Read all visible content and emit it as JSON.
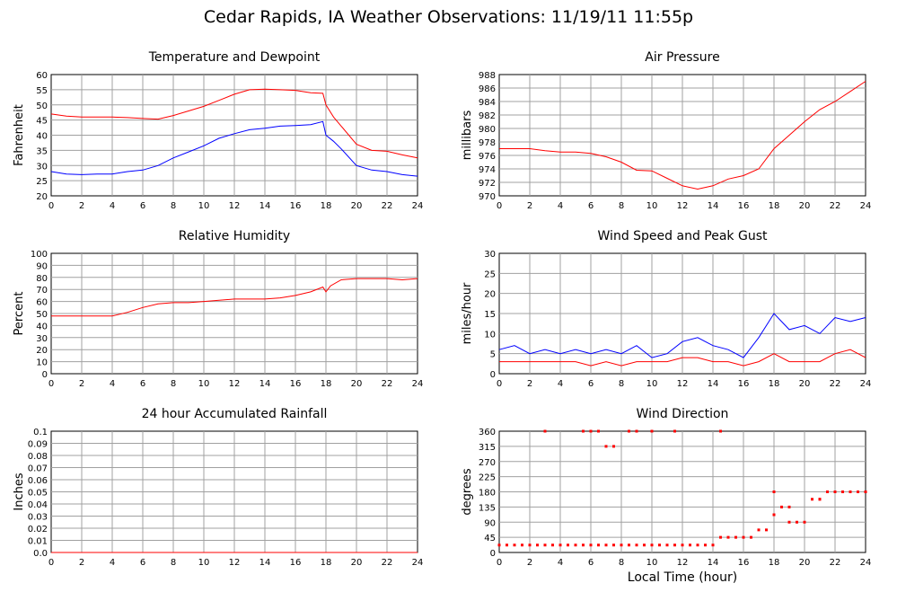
{
  "page": {
    "title": "Cedar Rapids, IA Weather Observations: 11/19/11 11:55p",
    "x_axis_title": "Local Time (hour)"
  },
  "colors": {
    "red_series": "#ff0000",
    "blue_series": "#0000ff",
    "grid": "#a0a0a0"
  },
  "chart_data": [
    {
      "type": "line",
      "title": "Temperature and Dewpoint",
      "ylabel": "Fahrenheit",
      "xlabel": "",
      "xlim": [
        0,
        24
      ],
      "xticks": [
        0,
        2,
        4,
        6,
        8,
        10,
        12,
        14,
        16,
        18,
        20,
        22,
        24
      ],
      "ylim": [
        20,
        60
      ],
      "yticks": [
        20,
        25,
        30,
        35,
        40,
        45,
        50,
        55,
        60
      ],
      "grid": true,
      "series": [
        {
          "color": "#ff0000",
          "x": [
            0,
            1,
            2,
            3,
            4,
            5,
            6,
            7,
            8,
            9,
            10,
            11,
            12,
            13,
            14,
            15,
            16,
            17,
            17.8,
            18,
            18.5,
            19,
            20,
            21,
            22,
            23,
            24
          ],
          "values": [
            47,
            46.3,
            46,
            46,
            46,
            45.8,
            45.5,
            45.3,
            46.5,
            48,
            49.5,
            51.5,
            53.5,
            55,
            55.2,
            55,
            54.8,
            54,
            53.8,
            50,
            46,
            43,
            37,
            35,
            34.7,
            33.5,
            32.5
          ]
        },
        {
          "color": "#0000ff",
          "x": [
            0,
            1,
            2,
            3,
            4,
            5,
            6,
            7,
            8,
            9,
            10,
            11,
            12,
            13,
            14,
            15,
            16,
            17,
            17.8,
            18,
            18.5,
            19,
            20,
            21,
            22,
            23,
            24
          ],
          "values": [
            28,
            27.2,
            27,
            27.2,
            27.2,
            28,
            28.5,
            30,
            32.5,
            34.5,
            36.5,
            39,
            40.5,
            41.8,
            42.3,
            43,
            43.2,
            43.5,
            44.5,
            40,
            38,
            35.5,
            30,
            28.5,
            28,
            27,
            26.5
          ]
        }
      ]
    },
    {
      "type": "line",
      "title": "Air Pressure",
      "ylabel": "millibars",
      "xlabel": "",
      "xlim": [
        0,
        24
      ],
      "xticks": [
        0,
        2,
        4,
        6,
        8,
        10,
        12,
        14,
        16,
        18,
        20,
        22,
        24
      ],
      "ylim": [
        970,
        988
      ],
      "yticks": [
        970,
        972,
        974,
        976,
        978,
        980,
        982,
        984,
        986,
        988
      ],
      "grid": true,
      "series": [
        {
          "color": "#ff0000",
          "x": [
            0,
            1,
            2,
            3,
            4,
            5,
            6,
            7,
            8,
            9,
            10,
            11,
            12,
            13,
            14,
            15,
            16,
            17,
            18,
            19,
            20,
            21,
            22,
            23,
            24
          ],
          "values": [
            977,
            977,
            977,
            976.7,
            976.5,
            976.5,
            976.3,
            975.8,
            975,
            973.8,
            973.7,
            972.6,
            971.5,
            971,
            971.5,
            972.5,
            973,
            974,
            977,
            979,
            981,
            982.8,
            984,
            985.5,
            987
          ]
        }
      ]
    },
    {
      "type": "line",
      "title": "Relative Humidity",
      "ylabel": "Percent",
      "xlabel": "",
      "xlim": [
        0,
        24
      ],
      "xticks": [
        0,
        2,
        4,
        6,
        8,
        10,
        12,
        14,
        16,
        18,
        20,
        22,
        24
      ],
      "ylim": [
        0,
        100
      ],
      "yticks": [
        0,
        10,
        20,
        30,
        40,
        50,
        60,
        70,
        80,
        90,
        100
      ],
      "grid": true,
      "series": [
        {
          "color": "#ff0000",
          "x": [
            0,
            1,
            2,
            3,
            4,
            5,
            6,
            7,
            8,
            9,
            10,
            11,
            12,
            13,
            14,
            15,
            16,
            17,
            17.8,
            18,
            18.3,
            19,
            20,
            21,
            22,
            23,
            24
          ],
          "values": [
            48,
            48,
            48,
            48,
            48,
            51,
            55,
            58,
            59,
            59,
            60,
            61,
            62,
            62,
            62,
            63,
            65,
            68,
            72,
            68,
            73,
            78,
            79,
            79,
            79,
            78,
            79
          ]
        }
      ]
    },
    {
      "type": "line",
      "title": "Wind Speed and Peak Gust",
      "ylabel": "miles/hour",
      "xlabel": "",
      "xlim": [
        0,
        24
      ],
      "xticks": [
        0,
        2,
        4,
        6,
        8,
        10,
        12,
        14,
        16,
        18,
        20,
        22,
        24
      ],
      "ylim": [
        0,
        30
      ],
      "yticks": [
        0,
        5,
        10,
        15,
        20,
        25,
        30
      ],
      "grid": true,
      "series": [
        {
          "color": "#0000ff",
          "x": [
            0,
            1,
            2,
            3,
            4,
            5,
            6,
            7,
            8,
            9,
            10,
            11,
            12,
            13,
            14,
            15,
            16,
            17,
            18,
            19,
            20,
            21,
            22,
            23,
            24
          ],
          "values": [
            6,
            7,
            5,
            6,
            5,
            6,
            5,
            6,
            5,
            7,
            4,
            5,
            8,
            9,
            7,
            6,
            4,
            9,
            15,
            11,
            12,
            10,
            14,
            13,
            14
          ]
        },
        {
          "color": "#ff0000",
          "x": [
            0,
            1,
            2,
            3,
            4,
            5,
            6,
            7,
            8,
            9,
            10,
            11,
            12,
            13,
            14,
            15,
            16,
            17,
            18,
            19,
            20,
            21,
            22,
            23,
            24
          ],
          "values": [
            3,
            3,
            3,
            3,
            3,
            3,
            2,
            3,
            2,
            3,
            3,
            3,
            4,
            4,
            3,
            3,
            2,
            3,
            5,
            3,
            3,
            3,
            5,
            6,
            4
          ]
        }
      ]
    },
    {
      "type": "line",
      "title": "24 hour Accumulated Rainfall",
      "ylabel": "Inches",
      "xlabel": "",
      "xlim": [
        0,
        24
      ],
      "xticks": [
        0,
        2,
        4,
        6,
        8,
        10,
        12,
        14,
        16,
        18,
        20,
        22,
        24
      ],
      "ylim": [
        0,
        0.1
      ],
      "yticks": [
        0.0,
        0.01,
        0.02,
        0.03,
        0.04,
        0.05,
        0.06,
        0.07,
        0.08,
        0.09,
        0.1
      ],
      "ytick_labels": [
        "0.0",
        "0.01",
        "0.02",
        "0.03",
        "0.04",
        "0.05",
        "0.06",
        "0.07",
        "0.08",
        "0.09",
        "0.1"
      ],
      "grid": true,
      "series": [
        {
          "color": "#ff0000",
          "x": [
            0,
            24
          ],
          "values": [
            0,
            0
          ]
        }
      ]
    },
    {
      "type": "scatter",
      "title": "Wind Direction",
      "ylabel": "degrees",
      "xlabel": "Local Time (hour)",
      "xlim": [
        0,
        24
      ],
      "xticks": [
        0,
        2,
        4,
        6,
        8,
        10,
        12,
        14,
        16,
        18,
        20,
        22,
        24
      ],
      "ylim": [
        0,
        360
      ],
      "yticks": [
        0,
        45,
        90,
        135,
        180,
        225,
        270,
        315,
        360
      ],
      "grid": true,
      "series": [
        {
          "color": "#ff0000",
          "x": [
            0,
            0.5,
            1,
            1.5,
            2,
            2.5,
            3,
            3.5,
            4,
            4.5,
            5,
            5.5,
            6,
            6.5,
            7,
            7.5,
            8,
            8.5,
            9,
            9.5,
            10,
            10.5,
            11,
            11.5,
            12,
            12.5,
            13,
            13.5,
            14,
            14.5,
            15,
            15.5,
            16,
            16.5,
            17,
            17.5,
            18,
            18.5,
            19,
            19.5,
            20,
            20.5,
            21,
            21.5,
            22,
            22.5,
            23,
            23.5,
            24,
            3,
            5.5,
            6,
            6.5,
            7,
            7.5,
            8.5,
            9,
            10,
            11.5,
            14.5,
            18,
            19,
            21,
            22.5,
            23.5
          ],
          "values": [
            22,
            22,
            22,
            22,
            22,
            22,
            22,
            22,
            22,
            22,
            22,
            22,
            22,
            22,
            22,
            22,
            22,
            22,
            22,
            22,
            22,
            22,
            22,
            22,
            22,
            22,
            22,
            22,
            22,
            45,
            45,
            45,
            45,
            45,
            67,
            67,
            112,
            135,
            135,
            90,
            90,
            158,
            158,
            180,
            180,
            180,
            180,
            180,
            180,
            360,
            360,
            360,
            360,
            315,
            315,
            360,
            360,
            360,
            360,
            360,
            180,
            90,
            158,
            180,
            180
          ]
        }
      ]
    }
  ]
}
